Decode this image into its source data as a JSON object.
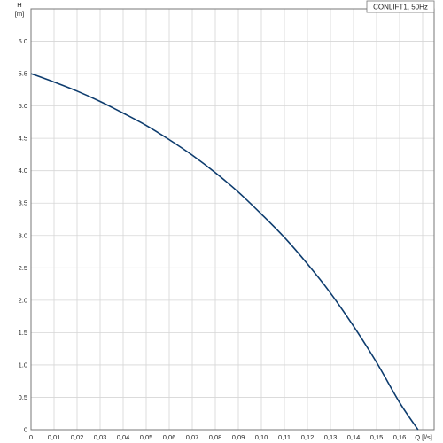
{
  "chart_data": {
    "type": "line",
    "legend": {
      "label": "CONLIFT1, 50Hz",
      "placement": "top-right"
    },
    "y_axis": {
      "name": "H",
      "unit": "[m]",
      "min": 0,
      "max": 6.5,
      "ticks": [
        "0",
        "0.5",
        "1.0",
        "1.5",
        "2.0",
        "2.5",
        "3.0",
        "3.5",
        "4.0",
        "4.5",
        "5.0",
        "5.5",
        "6.0"
      ]
    },
    "x_axis": {
      "label": "Q [l/s]",
      "min": 0,
      "max": 0.175,
      "ticks": [
        "0",
        "0,01",
        "0,02",
        "0,03",
        "0,04",
        "0,05",
        "0,06",
        "0,07",
        "0,08",
        "0,09",
        "0,10",
        "0,11",
        "0,12",
        "0,13",
        "0,14",
        "0,15",
        "0,16"
      ]
    },
    "grid": true,
    "series": [
      {
        "color": "#0d3c6e",
        "x": [
          0,
          0.01,
          0.02,
          0.03,
          0.04,
          0.05,
          0.06,
          0.07,
          0.08,
          0.09,
          0.1,
          0.11,
          0.12,
          0.13,
          0.14,
          0.15,
          0.16,
          0.168
        ],
        "y": [
          5.5,
          5.37,
          5.23,
          5.07,
          4.89,
          4.7,
          4.48,
          4.24,
          3.97,
          3.67,
          3.33,
          2.97,
          2.56,
          2.11,
          1.6,
          1.04,
          0.42,
          0.0
        ]
      }
    ]
  }
}
